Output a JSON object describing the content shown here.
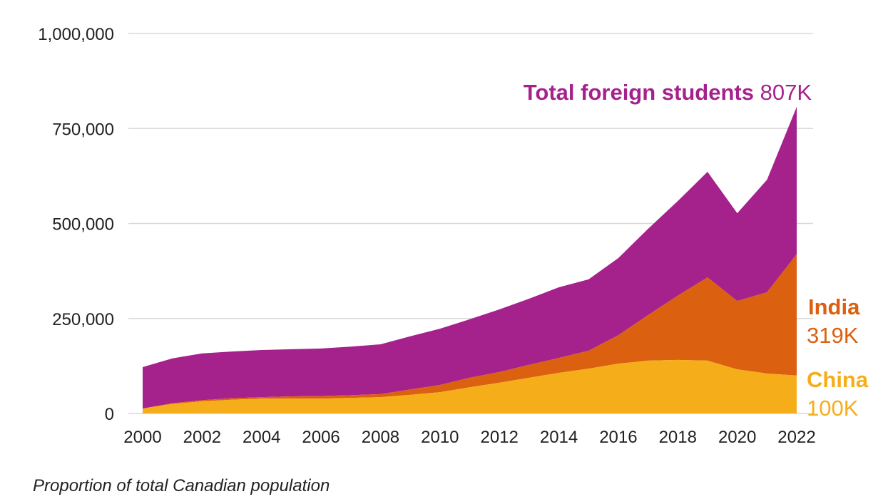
{
  "chart_data": {
    "type": "area",
    "stacked": true,
    "x": [
      2000,
      2001,
      2002,
      2003,
      2004,
      2005,
      2006,
      2007,
      2008,
      2009,
      2010,
      2011,
      2012,
      2013,
      2014,
      2015,
      2016,
      2017,
      2018,
      2019,
      2020,
      2021,
      2022
    ],
    "series": [
      {
        "name": "China",
        "values": [
          13000,
          25000,
          32000,
          36000,
          39000,
          39000,
          39000,
          41000,
          43000,
          49000,
          56000,
          69000,
          81000,
          94000,
          107000,
          118000,
          131000,
          139000,
          141000,
          139000,
          116000,
          105000,
          100000
        ],
        "color": "#F5AE1A"
      },
      {
        "name": "India",
        "values": [
          0,
          2000,
          3000,
          4000,
          4000,
          6000,
          7000,
          7000,
          8000,
          14000,
          19000,
          25000,
          28000,
          34000,
          39000,
          47000,
          75000,
          120000,
          169000,
          219000,
          180000,
          214000,
          319000
        ],
        "color": "#DB6010"
      },
      {
        "name": "Total foreign students",
        "total_values": [
          122000,
          145000,
          158000,
          163000,
          167000,
          169000,
          171000,
          176000,
          182000,
          203000,
          223000,
          248000,
          274000,
          302000,
          332000,
          353000,
          409000,
          486000,
          559000,
          636000,
          527000,
          615000,
          807000
        ],
        "color": "#A5228D"
      }
    ],
    "ylim": [
      0,
      1000000
    ],
    "yticks": [
      "0",
      "250,000",
      "500,000",
      "750,000",
      "1,000,000"
    ],
    "ytick_values": [
      0,
      250000,
      500000,
      750000,
      1000000
    ],
    "xticks": [
      "2000",
      "2002",
      "2004",
      "2006",
      "2008",
      "2010",
      "2012",
      "2014",
      "2016",
      "2018",
      "2020",
      "2022"
    ],
    "grid": true,
    "labels": {
      "total": {
        "name": "Total foreign students",
        "value": "807K"
      },
      "india": {
        "name": "India",
        "value": "319K"
      },
      "china": {
        "name": "China",
        "value": "100K"
      }
    },
    "footnote": "Proportion of total Canadian population"
  }
}
